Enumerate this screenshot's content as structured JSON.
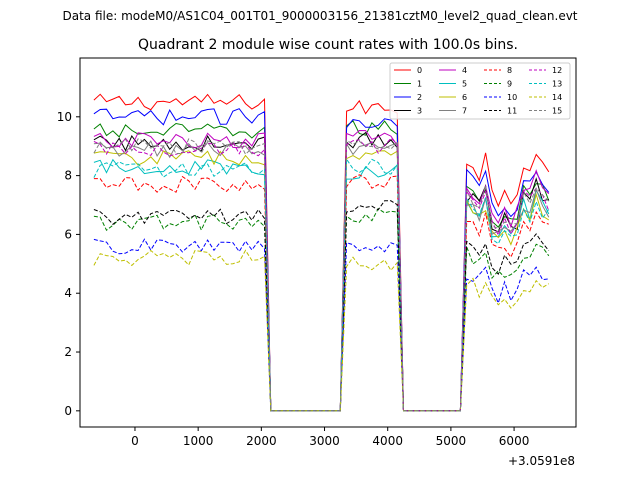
{
  "suptitle": "Data file: modeM0/AS1C04_001T01_9000003156_21381cztM0_level2_quad_clean.evt",
  "chart_data": {
    "type": "line",
    "title": "Quadrant 2 module wise count rates with 100.0s bins.",
    "xlabel": "",
    "ylabel": "",
    "x_offset_label": "+3.0591e8",
    "xlim": [
      -870,
      6980
    ],
    "ylim": [
      -0.55,
      12.0
    ],
    "xticks": [
      0,
      1000,
      2000,
      3000,
      4000,
      5000,
      6000
    ],
    "yticks": [
      0,
      2,
      4,
      6,
      8,
      10
    ],
    "legend_position": "top-right",
    "segments": [
      [
        -650,
        2050
      ],
      [
        2150,
        3250
      ],
      [
        3310,
        4150
      ],
      [
        4250,
        5150
      ],
      [
        5200,
        6600
      ]
    ],
    "series": [
      {
        "name": "0",
        "color": "#ff0000",
        "dash": "solid",
        "levels": [
          10.5,
          0.0,
          10.3,
          0.0,
          8.4
        ]
      },
      {
        "name": "1",
        "color": "#008000",
        "dash": "solid",
        "levels": [
          9.5,
          0.0,
          9.6,
          0.0,
          7.5
        ]
      },
      {
        "name": "2",
        "color": "#0000ff",
        "dash": "solid",
        "levels": [
          10.0,
          0.0,
          9.9,
          0.0,
          7.9
        ]
      },
      {
        "name": "3",
        "color": "#000000",
        "dash": "solid",
        "levels": [
          9.1,
          0.0,
          9.2,
          0.0,
          7.2
        ]
      },
      {
        "name": "4",
        "color": "#bf00bf",
        "dash": "solid",
        "levels": [
          9.2,
          0.0,
          9.3,
          0.0,
          7.5
        ]
      },
      {
        "name": "5",
        "color": "#00bfbf",
        "dash": "solid",
        "levels": [
          8.3,
          0.0,
          8.1,
          0.0,
          6.9
        ]
      },
      {
        "name": "6",
        "color": "#bfbf00",
        "dash": "solid",
        "levels": [
          8.6,
          0.0,
          8.6,
          0.0,
          6.8
        ]
      },
      {
        "name": "7",
        "color": "#808080",
        "dash": "solid",
        "levels": [
          8.9,
          0.0,
          8.9,
          0.0,
          7.0
        ]
      },
      {
        "name": "8",
        "color": "#ff0000",
        "dash": "dashed",
        "levels": [
          7.7,
          0.0,
          7.8,
          0.0,
          6.3
        ]
      },
      {
        "name": "9",
        "color": "#008000",
        "dash": "dashed",
        "levels": [
          6.4,
          0.0,
          6.6,
          0.0,
          5.3
        ]
      },
      {
        "name": "10",
        "color": "#0000ff",
        "dash": "dashed",
        "levels": [
          5.6,
          0.0,
          5.5,
          0.0,
          4.6
        ]
      },
      {
        "name": "11",
        "color": "#000000",
        "dash": "dashed",
        "levels": [
          6.6,
          0.0,
          6.9,
          0.0,
          5.7
        ]
      },
      {
        "name": "12",
        "color": "#bf00bf",
        "dash": "dashed",
        "levels": [
          8.9,
          0.0,
          9.0,
          0.0,
          7.2
        ]
      },
      {
        "name": "13",
        "color": "#00bfbf",
        "dash": "dashed",
        "levels": [
          8.2,
          0.0,
          8.3,
          0.0,
          6.8
        ]
      },
      {
        "name": "14",
        "color": "#bfbf00",
        "dash": "dashed",
        "levels": [
          5.2,
          0.0,
          5.0,
          0.0,
          4.3
        ]
      },
      {
        "name": "15",
        "color": "#808080",
        "dash": "dashed",
        "levels": [
          9.0,
          0.0,
          9.1,
          0.0,
          7.3
        ]
      }
    ]
  }
}
